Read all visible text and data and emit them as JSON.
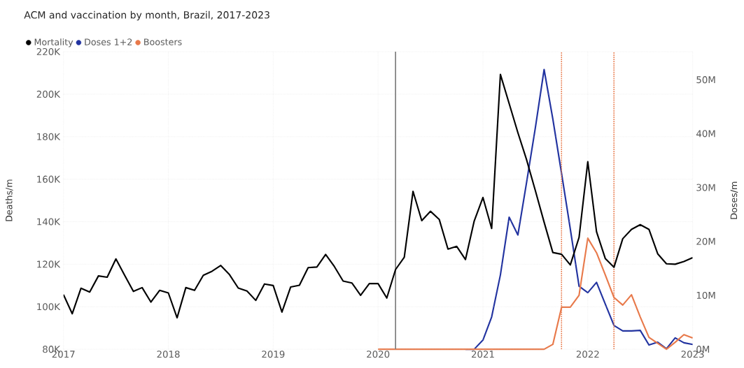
{
  "chart_data": {
    "type": "line",
    "title": "ACM and vaccination by month, Brazil, 2017-2023",
    "ylabel": "Deaths/m",
    "y2label": "Doses/m",
    "x": [
      "2017-01",
      "2017-02",
      "2017-03",
      "2017-04",
      "2017-05",
      "2017-06",
      "2017-07",
      "2017-08",
      "2017-09",
      "2017-10",
      "2017-11",
      "2017-12",
      "2018-01",
      "2018-02",
      "2018-03",
      "2018-04",
      "2018-05",
      "2018-06",
      "2018-07",
      "2018-08",
      "2018-09",
      "2018-10",
      "2018-11",
      "2018-12",
      "2019-01",
      "2019-02",
      "2019-03",
      "2019-04",
      "2019-05",
      "2019-06",
      "2019-07",
      "2019-08",
      "2019-09",
      "2019-10",
      "2019-11",
      "2019-12",
      "2020-01",
      "2020-02",
      "2020-03",
      "2020-04",
      "2020-05",
      "2020-06",
      "2020-07",
      "2020-08",
      "2020-09",
      "2020-10",
      "2020-11",
      "2020-12",
      "2021-01",
      "2021-02",
      "2021-03",
      "2021-04",
      "2021-05",
      "2021-06",
      "2021-07",
      "2021-08",
      "2021-09",
      "2021-10",
      "2021-11",
      "2021-12",
      "2022-01",
      "2022-02",
      "2022-03",
      "2022-04",
      "2022-05",
      "2022-06",
      "2022-07",
      "2022-08",
      "2022-09",
      "2022-10",
      "2022-11",
      "2022-12",
      "2023-01"
    ],
    "series": [
      {
        "name": "Mortality",
        "color": "#000000",
        "values": [
          105700,
          96700,
          108700,
          106900,
          114500,
          113900,
          122500,
          114800,
          107200,
          109000,
          102200,
          107700,
          106500,
          94800,
          109000,
          107700,
          114800,
          116700,
          119400,
          115100,
          108800,
          107400,
          103000,
          110700,
          110000,
          97500,
          109300,
          110100,
          118400,
          118700,
          124600,
          118900,
          112100,
          111200,
          105400,
          110900,
          110900,
          104100,
          117500,
          123300,
          154300,
          140500,
          144900,
          141100,
          127100,
          128400,
          122200,
          140300,
          151400,
          136800,
          209300,
          195600,
          181900,
          169100,
          154600,
          139800,
          125500,
          124700,
          119700,
          132600,
          168200,
          135300,
          122700,
          118600,
          132000,
          136400,
          138600,
          136400,
          124900,
          120200,
          120000,
          121300,
          123100
        ]
      },
      {
        "name": "Doses 1+2",
        "color": "#2233a0",
        "axis": "y2",
        "x": [
          "2020-11",
          "2020-12",
          "2021-01",
          "2021-02",
          "2021-03",
          "2021-04",
          "2021-05",
          "2021-06",
          "2021-07",
          "2021-08",
          "2021-09",
          "2021-10",
          "2021-11",
          "2021-12",
          "2022-01",
          "2022-02",
          "2022-03",
          "2022-04",
          "2022-05",
          "2022-06",
          "2022-07",
          "2022-08",
          "2022-09",
          "2022-10",
          "2022-11",
          "2022-12",
          "2023-01"
        ],
        "values": [
          0,
          0,
          1700000,
          6000000,
          13800000,
          24500000,
          21200000,
          31000000,
          41100000,
          51900000,
          42700000,
          32600000,
          22300000,
          11700000,
          10500000,
          12400000,
          8400000,
          4400000,
          3400000,
          3400000,
          3500000,
          800000,
          1300000,
          100000,
          2100000,
          1200000,
          900000
        ]
      },
      {
        "name": "Boosters",
        "color": "#e8794a",
        "axis": "y2",
        "x": [
          "2020-01",
          "2020-02",
          "2020-03",
          "2020-04",
          "2020-05",
          "2020-06",
          "2020-07",
          "2020-08",
          "2020-09",
          "2020-10",
          "2020-11",
          "2020-12",
          "2021-01",
          "2021-02",
          "2021-03",
          "2021-04",
          "2021-05",
          "2021-06",
          "2021-07",
          "2021-08",
          "2021-09",
          "2021-10",
          "2021-11",
          "2021-12",
          "2022-01",
          "2022-02",
          "2022-03",
          "2022-04",
          "2022-05",
          "2022-06",
          "2022-07",
          "2022-08",
          "2022-09",
          "2022-10",
          "2022-11",
          "2022-12",
          "2023-01"
        ],
        "values": [
          0,
          0,
          0,
          0,
          0,
          0,
          0,
          0,
          0,
          0,
          0,
          0,
          0,
          0,
          0,
          0,
          0,
          0,
          0,
          0,
          900000,
          7800000,
          7800000,
          10000000,
          20600000,
          17900000,
          13800000,
          9600000,
          8200000,
          10100000,
          6000000,
          2200000,
          1100000,
          0,
          1300000,
          2700000,
          2100000
        ]
      }
    ],
    "xlim": [
      "2017-01",
      "2023-01"
    ],
    "xticks": [
      "2017",
      "2018",
      "2019",
      "2020",
      "2021",
      "2022",
      "2023"
    ],
    "ylim": [
      80000,
      220000
    ],
    "yticks": [
      {
        "value": 80000,
        "label": "80K"
      },
      {
        "value": 100000,
        "label": "100K"
      },
      {
        "value": 120000,
        "label": "120K"
      },
      {
        "value": 140000,
        "label": "140K"
      },
      {
        "value": 160000,
        "label": "160K"
      },
      {
        "value": 180000,
        "label": "180K"
      },
      {
        "value": 200000,
        "label": "200K"
      },
      {
        "value": 220000,
        "label": "220K"
      }
    ],
    "y2lim": [
      0,
      55200000
    ],
    "y2ticks": [
      {
        "value": 0,
        "label": "0M"
      },
      {
        "value": 10000000,
        "label": "10M"
      },
      {
        "value": 20000000,
        "label": "20M"
      },
      {
        "value": 30000000,
        "label": "30M"
      },
      {
        "value": 40000000,
        "label": "40M"
      },
      {
        "value": 50000000,
        "label": "50M"
      }
    ],
    "ref_lines": [
      {
        "axis": "x",
        "value": "2020-03",
        "color": "#808080",
        "line_style": "solid"
      },
      {
        "axis": "x",
        "value": "2021-10",
        "color": "#e8794a",
        "line_style": "dotted"
      },
      {
        "axis": "x",
        "value": "2022-04",
        "color": "#e8794a",
        "line_style": "dotted"
      }
    ],
    "grid": true,
    "legend": "top left",
    "marker": "none",
    "line_style": "solid"
  }
}
